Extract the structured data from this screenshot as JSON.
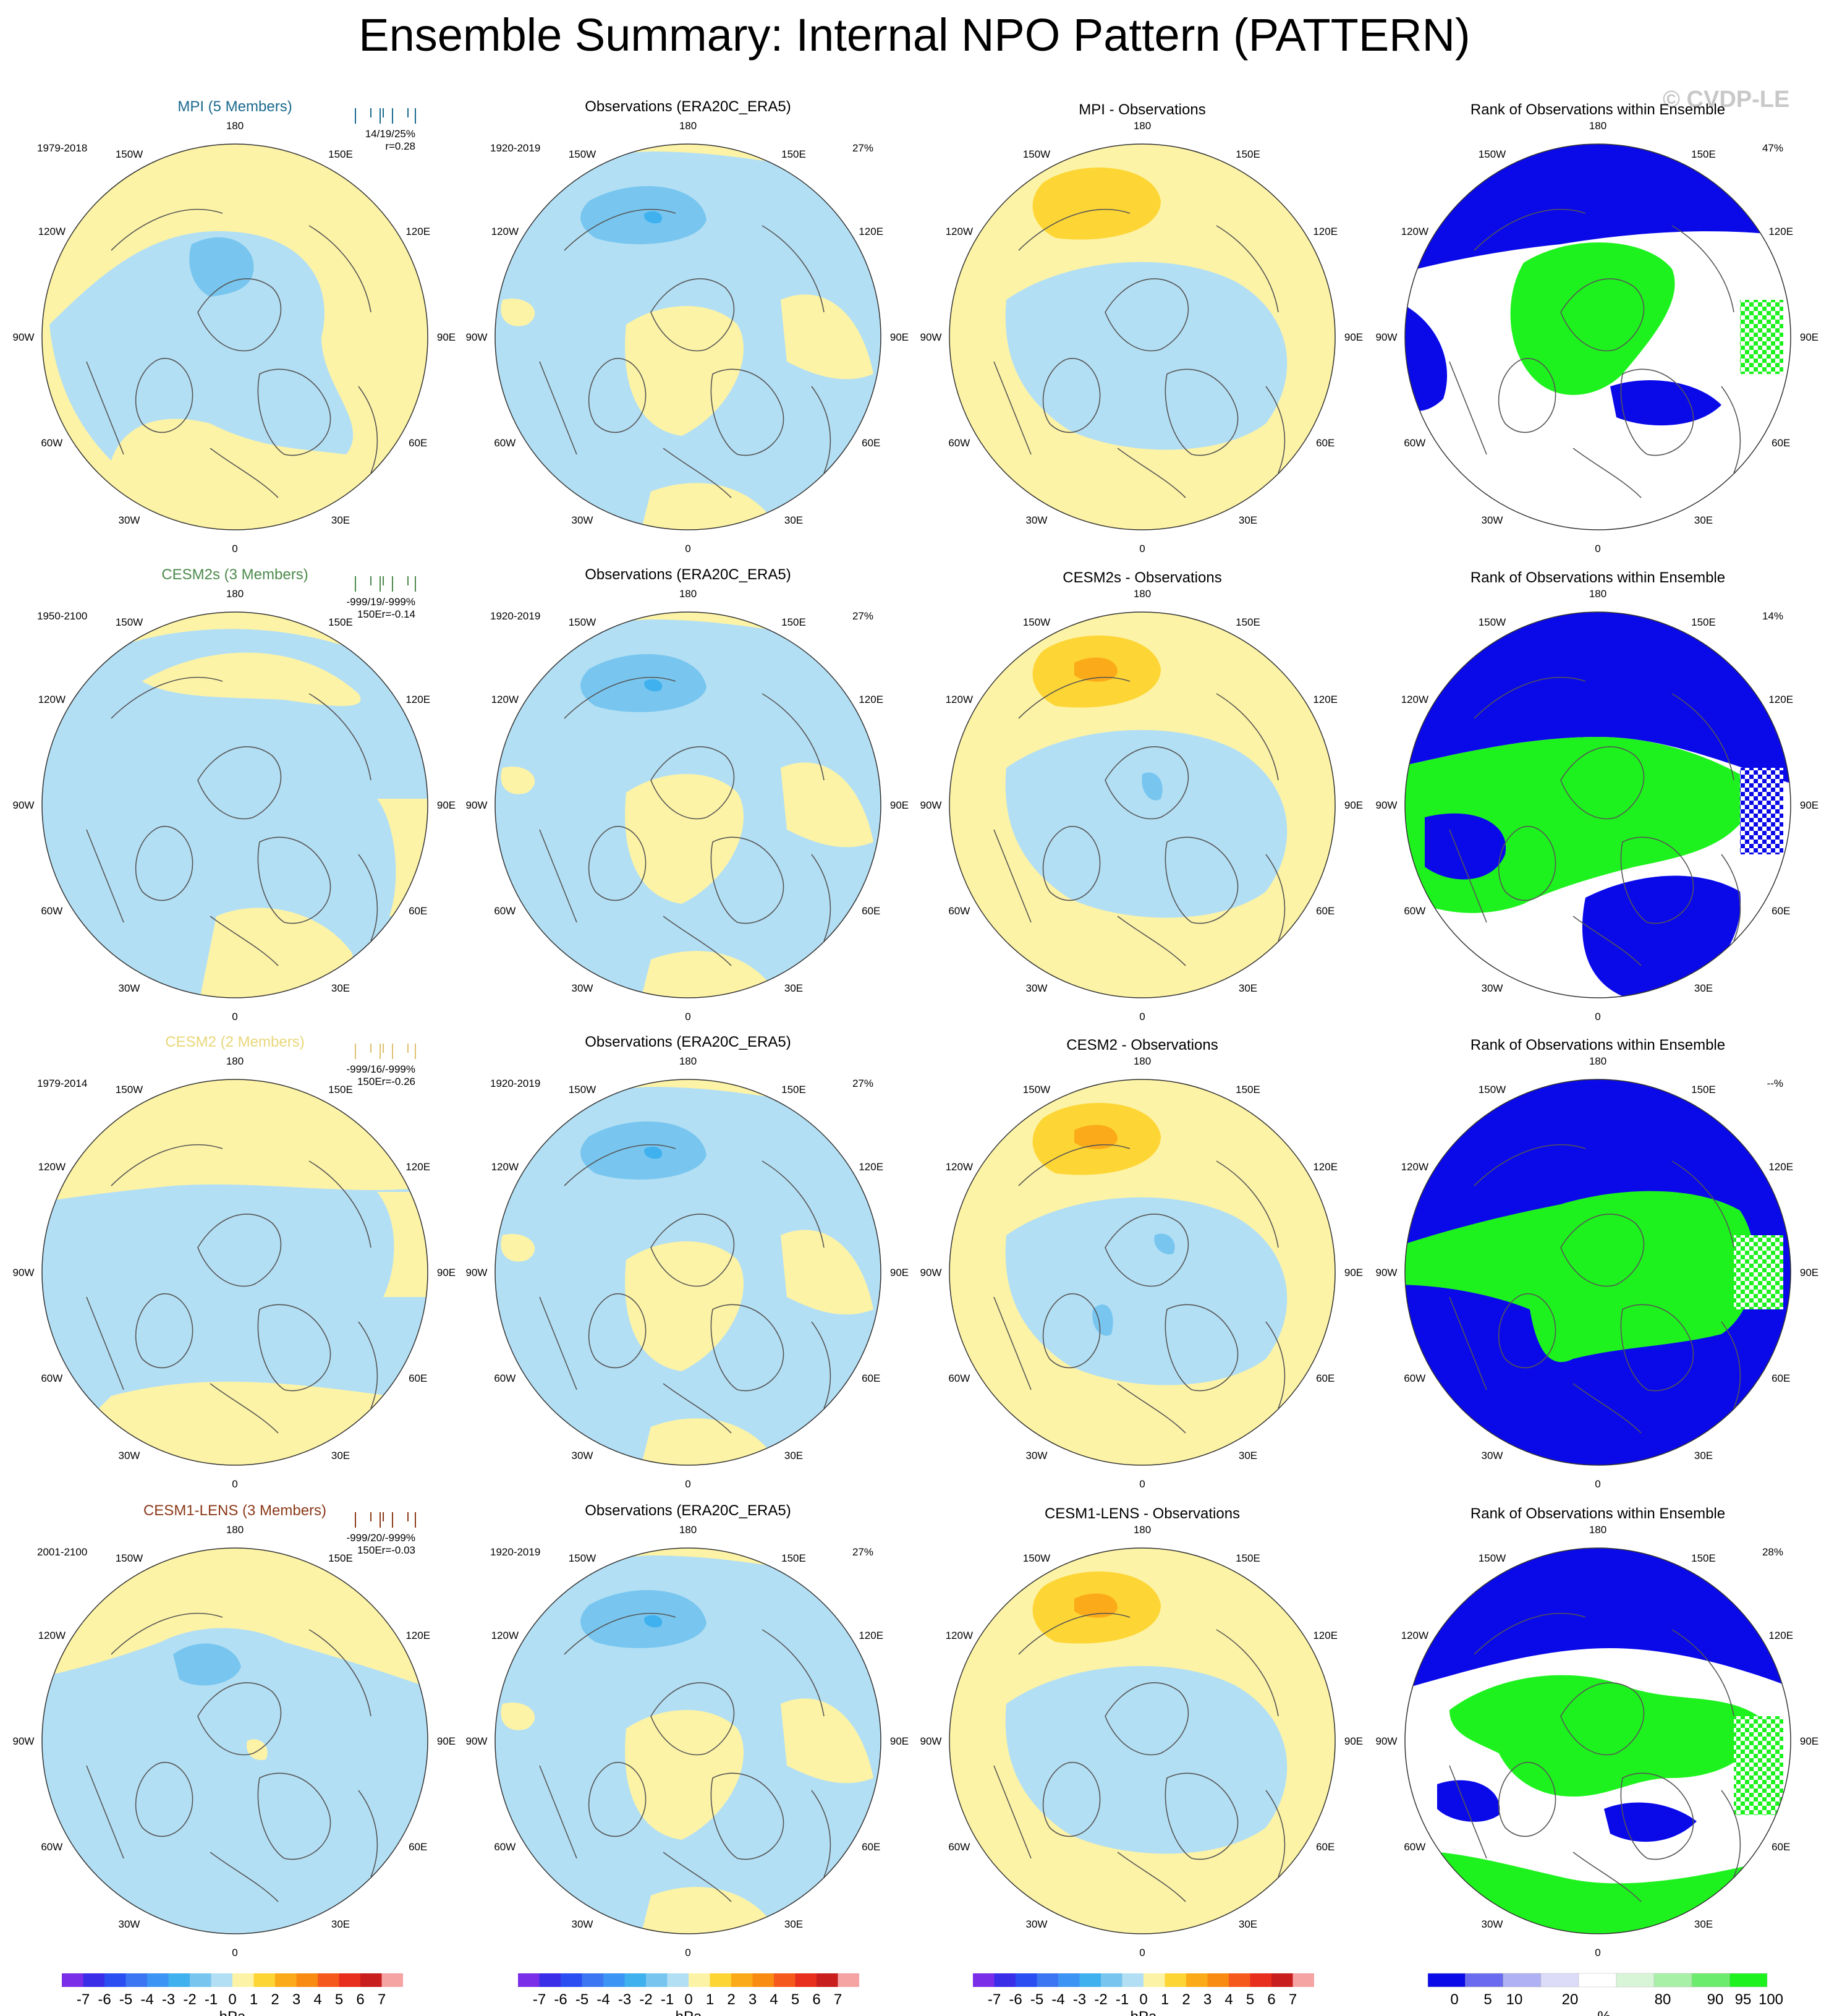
{
  "title": "Ensemble Summary: Internal NPO Pattern (PATTERN)",
  "watermark": "© CVDP-LE",
  "lon_labels": [
    "180",
    "150E",
    "120E",
    "90E",
    "60E",
    "30E",
    "0",
    "30W",
    "60W",
    "90W",
    "120W",
    "150W"
  ],
  "colors": {
    "light_blue": "#b3dff4",
    "mid_blue": "#78c6ef",
    "deep_blue": "#3fb1ef",
    "yellow": "#fdf3a6",
    "orange_light": "#fdd535",
    "orange": "#fbaa1a",
    "rank_blue": "#0a0ae8",
    "rank_green": "#1ef21e",
    "rank_white": "#ffffff",
    "rank_pale": "#e5f8e5"
  },
  "rows": [
    {
      "model": {
        "title": "MPI (5 Members)",
        "title_color": "#1a6a8e",
        "period": "1979-2018",
        "stats_line1": "14/19/25%",
        "stats_line2": "r=0.28",
        "bar_color": "#1a6a8e",
        "variant": "mpi"
      },
      "obs": {
        "title": "Observations (ERA20C_ERA5)",
        "period": "1920-2019",
        "pct": "27%"
      },
      "diff": {
        "title": "MPI - Observations",
        "variant": "mpi"
      },
      "rank": {
        "title": "Rank of Observations within Ensemble",
        "pct": "47%",
        "variant": "mpi"
      }
    },
    {
      "model": {
        "title": "CESM2s (3 Members)",
        "title_color": "#4d8a4d",
        "period": "1950-2100",
        "stats_line1": "-999/19/-999%",
        "stats_line2": "150Er=-0.14",
        "bar_color": "#4d8a4d",
        "variant": "cesm2s"
      },
      "obs": {
        "title": "Observations (ERA20C_ERA5)",
        "period": "1920-2019",
        "pct": "27%"
      },
      "diff": {
        "title": "CESM2s - Observations",
        "variant": "cesm2s"
      },
      "rank": {
        "title": "Rank of Observations within Ensemble",
        "pct": "14%",
        "variant": "cesm2s"
      }
    },
    {
      "model": {
        "title": "CESM2 (2 Members)",
        "title_color": "#e8d77a",
        "period": "1979-2014",
        "stats_line1": "-999/16/-999%",
        "stats_line2": "150Er=-0.26",
        "bar_color": "#e0c070",
        "variant": "cesm2"
      },
      "obs": {
        "title": "Observations (ERA20C_ERA5)",
        "period": "1920-2019",
        "pct": "27%"
      },
      "diff": {
        "title": "CESM2 - Observations",
        "variant": "cesm2"
      },
      "rank": {
        "title": "Rank of Observations within Ensemble",
        "pct": "--%",
        "variant": "cesm2"
      }
    },
    {
      "model": {
        "title": "CESM1-LENS (3 Members)",
        "title_color": "#8b3a1a",
        "period": "2001-2100",
        "stats_line1": "-999/20/-999%",
        "stats_line2": "150Er=-0.03",
        "bar_color": "#8b3a1a",
        "variant": "lens"
      },
      "obs": {
        "title": "Observations (ERA20C_ERA5)",
        "period": "1920-2019",
        "pct": "27%"
      },
      "diff": {
        "title": "CESM1-LENS - Observations",
        "variant": "lens"
      },
      "rank": {
        "title": "Rank of Observations within Ensemble",
        "pct": "28%",
        "variant": "lens"
      }
    }
  ],
  "hpa_colorbar": {
    "unit": "hPa",
    "labels": [
      "-7",
      "-6",
      "-5",
      "-4",
      "-3",
      "-2",
      "-1",
      "0",
      "1",
      "2",
      "3",
      "4",
      "5",
      "6",
      "7"
    ],
    "colors": [
      "#7b2ee8",
      "#3a2ee8",
      "#2b4ef2",
      "#3c76f2",
      "#3c94f4",
      "#3fb1ef",
      "#78c6ef",
      "#b3dff4",
      "#fdf3a6",
      "#fdd535",
      "#fbaa1a",
      "#f98a12",
      "#f5591c",
      "#e82e1c",
      "#c81e1e",
      "#f5a3a3"
    ]
  },
  "rank_colorbar": {
    "unit": "%",
    "labels": [
      "0",
      "5",
      "10",
      "20",
      "80",
      "90",
      "95",
      "100"
    ],
    "colors": [
      "#0a0ae8",
      "#6a6af0",
      "#b0b0f5",
      "#dcdcf8",
      "#ffffff",
      "#d8f5d8",
      "#a8f0a8",
      "#6cec6c",
      "#1ef21e"
    ]
  }
}
